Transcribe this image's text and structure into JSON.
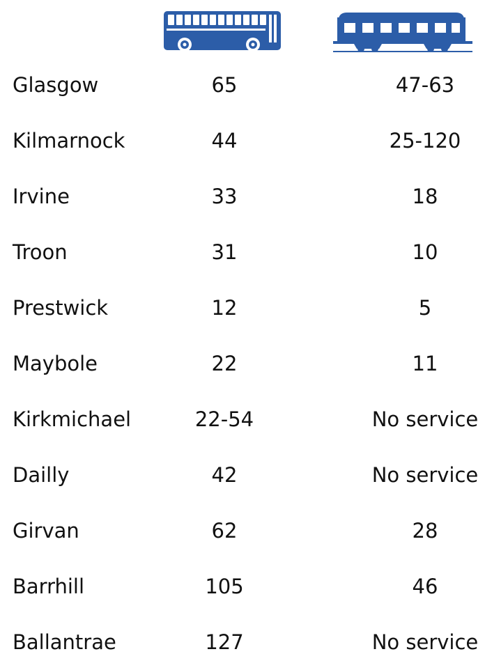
{
  "colors": {
    "icon": "#2c5da8",
    "text": "#111111",
    "background": "#ffffff"
  },
  "header": {
    "bus_icon": "bus-icon",
    "train_icon": "train-icon"
  },
  "rows": [
    {
      "town": "Glasgow",
      "bus": "65",
      "train": "47-63"
    },
    {
      "town": "Kilmarnock",
      "bus": "44",
      "train": "25-120"
    },
    {
      "town": "Irvine",
      "bus": "33",
      "train": "18"
    },
    {
      "town": "Troon",
      "bus": "31",
      "train": "10"
    },
    {
      "town": "Prestwick",
      "bus": "12",
      "train": "5"
    },
    {
      "town": "Maybole",
      "bus": "22",
      "train": "11"
    },
    {
      "town": "Kirkmichael",
      "bus": "22-54",
      "train": "No service"
    },
    {
      "town": "Dailly",
      "bus": "42",
      "train": "No service"
    },
    {
      "town": "Girvan",
      "bus": "62",
      "train": "28"
    },
    {
      "town": "Barrhill",
      "bus": "105",
      "train": "46"
    },
    {
      "town": "Ballantrae",
      "bus": "127",
      "train": "No service"
    }
  ]
}
